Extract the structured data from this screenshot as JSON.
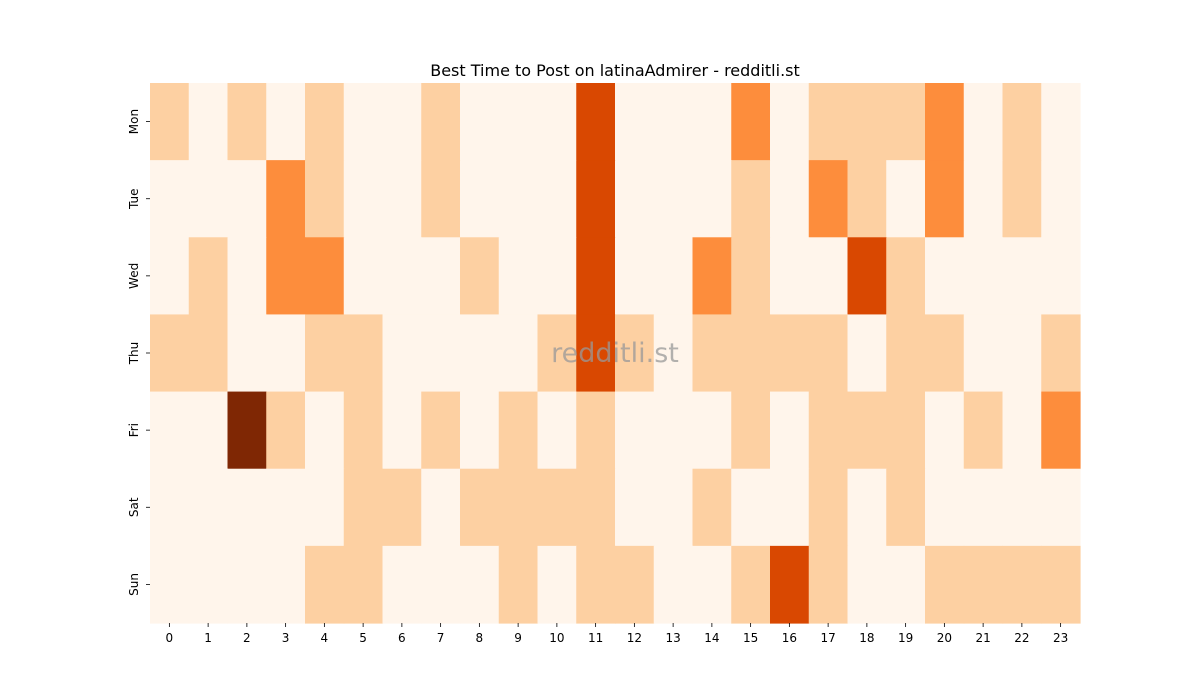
{
  "chart_data": {
    "type": "heatmap",
    "title": "Best Time to Post on latinaAdmirer - redditli.st",
    "xlabel": "",
    "ylabel": "",
    "x_tick_labels": [
      "0",
      "1",
      "2",
      "3",
      "4",
      "5",
      "6",
      "7",
      "8",
      "9",
      "10",
      "11",
      "12",
      "13",
      "14",
      "15",
      "16",
      "17",
      "18",
      "19",
      "20",
      "21",
      "22",
      "23"
    ],
    "y_tick_labels": [
      "Mon",
      "Tue",
      "Wed",
      "Thu",
      "Fri",
      "Sat",
      "Sun"
    ],
    "values": [
      [
        1,
        0,
        1,
        0,
        1,
        0,
        0,
        1,
        0,
        0,
        0,
        4,
        0,
        0,
        0,
        3,
        0,
        1,
        1,
        1,
        3,
        0,
        1,
        0
      ],
      [
        0,
        0,
        0,
        3,
        1,
        0,
        0,
        1,
        0,
        0,
        0,
        4,
        0,
        0,
        0,
        1,
        0,
        3,
        1,
        0,
        3,
        0,
        1,
        0
      ],
      [
        0,
        1,
        0,
        3,
        3,
        0,
        0,
        0,
        1,
        0,
        0,
        4,
        0,
        0,
        3,
        1,
        0,
        0,
        4,
        1,
        0,
        0,
        0,
        0
      ],
      [
        1,
        1,
        0,
        0,
        1,
        1,
        0,
        0,
        0,
        0,
        1,
        4,
        1,
        0,
        1,
        1,
        1,
        1,
        0,
        1,
        1,
        0,
        0,
        1
      ],
      [
        0,
        0,
        5,
        1,
        0,
        1,
        0,
        1,
        0,
        1,
        0,
        1,
        0,
        0,
        0,
        1,
        0,
        1,
        1,
        1,
        0,
        1,
        0,
        3
      ],
      [
        0,
        0,
        0,
        0,
        0,
        1,
        1,
        0,
        1,
        1,
        1,
        1,
        0,
        0,
        1,
        0,
        0,
        1,
        0,
        1,
        0,
        0,
        0,
        0
      ],
      [
        0,
        0,
        0,
        0,
        1,
        1,
        0,
        0,
        0,
        1,
        0,
        1,
        1,
        0,
        0,
        1,
        4,
        1,
        0,
        0,
        1,
        1,
        1,
        1
      ]
    ],
    "colormap": "Oranges",
    "level_colors": [
      "#fff5eb",
      "#fdd0a2",
      "#fdae6b",
      "#fd8d3c",
      "#d94801",
      "#7f2704"
    ],
    "colorbar": false,
    "grid": false,
    "watermark": "redditli.st"
  }
}
